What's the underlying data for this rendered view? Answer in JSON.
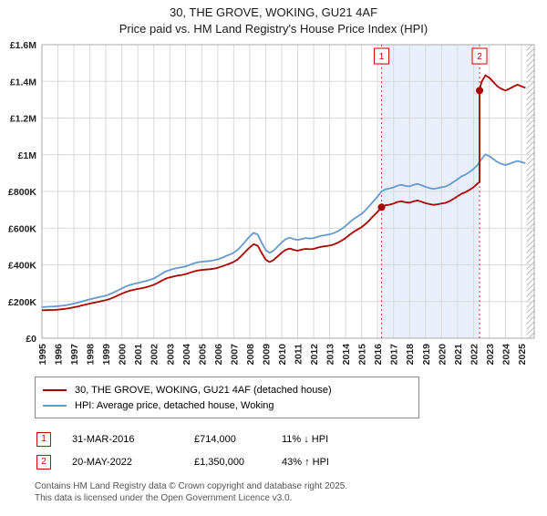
{
  "title": {
    "line1": "30, THE GROVE, WOKING, GU21 4AF",
    "line2": "Price paid vs. HM Land Registry's House Price Index (HPI)"
  },
  "legend": {
    "items": [
      {
        "label": "30, THE GROVE, WOKING, GU21 4AF (detached house)",
        "color": "#aa0000"
      },
      {
        "label": "HPI: Average price, detached house, Woking",
        "color": "#6699cc"
      }
    ]
  },
  "sales": [
    {
      "num": "1",
      "date": "31-MAR-2016",
      "price": "£714,000",
      "hpi": "11% ↓ HPI"
    },
    {
      "num": "2",
      "date": "20-MAY-2022",
      "price": "£1,350,000",
      "hpi": "43% ↑ HPI"
    }
  ],
  "footer": {
    "line1": "Contains HM Land Registry data © Crown copyright and database right 2025.",
    "line2": "This data is licensed under the Open Government Licence v3.0."
  },
  "chart_data": {
    "type": "line",
    "title": "30, THE GROVE, WOKING, GU21 4AF",
    "subtitle": "Price paid vs. HM Land Registry's House Price Index (HPI)",
    "x_range": [
      1995,
      2025.8
    ],
    "y_range": [
      0,
      1600
    ],
    "y_unit": "GBP thousands",
    "y_ticks": [
      {
        "v": 0,
        "label": "£0"
      },
      {
        "v": 200,
        "label": "£200K"
      },
      {
        "v": 400,
        "label": "£400K"
      },
      {
        "v": 600,
        "label": "£600K"
      },
      {
        "v": 800,
        "label": "£800K"
      },
      {
        "v": 1000,
        "label": "£1M"
      },
      {
        "v": 1200,
        "label": "£1.2M"
      },
      {
        "v": 1400,
        "label": "£1.4M"
      },
      {
        "v": 1600,
        "label": "£1.6M"
      }
    ],
    "x_ticks": [
      1995,
      1996,
      1997,
      1998,
      1999,
      2000,
      2001,
      2002,
      2003,
      2004,
      2005,
      2006,
      2007,
      2008,
      2009,
      2010,
      2011,
      2012,
      2013,
      2014,
      2015,
      2016,
      2017,
      2018,
      2019,
      2020,
      2021,
      2022,
      2023,
      2024,
      2025
    ],
    "shade_region": [
      2016.25,
      2022.38
    ],
    "hatch_region": [
      2025.32,
      2025.8
    ],
    "colors": {
      "grid": "#d8d8d8",
      "shade": "#e9effa",
      "hatch": "#bbbbbb",
      "marker_line": "#cc3333",
      "marker_box_border": "#cc0000",
      "plot_border": "#aaaaaa"
    },
    "markers": [
      {
        "n": "1",
        "x": 2016.25,
        "y": 714
      },
      {
        "n": "2",
        "x": 2022.38,
        "y": 1350
      }
    ],
    "series": [
      {
        "name": "30, THE GROVE, WOKING, GU21 4AF (detached house)",
        "data_name": "price-paid-series",
        "color": "#aa0000",
        "x": [
          1995,
          1995.25,
          1995.5,
          1995.75,
          1996,
          1996.25,
          1996.5,
          1996.75,
          1997,
          1997.25,
          1997.5,
          1997.75,
          1998,
          1998.25,
          1998.5,
          1998.75,
          1999,
          1999.25,
          1999.5,
          1999.75,
          2000,
          2000.25,
          2000.5,
          2000.75,
          2001,
          2001.25,
          2001.5,
          2001.75,
          2002,
          2002.25,
          2002.5,
          2002.75,
          2003,
          2003.25,
          2003.5,
          2003.75,
          2004,
          2004.25,
          2004.5,
          2004.75,
          2005,
          2005.25,
          2005.5,
          2005.75,
          2006,
          2006.25,
          2006.5,
          2006.75,
          2007,
          2007.25,
          2007.5,
          2007.75,
          2008,
          2008.25,
          2008.5,
          2008.75,
          2009,
          2009.25,
          2009.5,
          2009.75,
          2010,
          2010.25,
          2010.5,
          2010.75,
          2011,
          2011.25,
          2011.5,
          2011.75,
          2012,
          2012.25,
          2012.5,
          2012.75,
          2013,
          2013.25,
          2013.5,
          2013.75,
          2014,
          2014.25,
          2014.5,
          2014.75,
          2015,
          2015.25,
          2015.5,
          2015.75,
          2016,
          2016.25,
          2016.5,
          2016.75,
          2017,
          2017.25,
          2017.5,
          2017.75,
          2018,
          2018.25,
          2018.5,
          2018.75,
          2019,
          2019.25,
          2019.5,
          2019.75,
          2020,
          2020.25,
          2020.5,
          2020.75,
          2021,
          2021.25,
          2021.5,
          2021.75,
          2022,
          2022.25,
          2022.38,
          2022.38,
          2022.5,
          2022.75,
          2023,
          2023.25,
          2023.5,
          2023.75,
          2024,
          2024.25,
          2024.5,
          2024.75,
          2025,
          2025.25
        ],
        "y": [
          152,
          153,
          154,
          154,
          156,
          158,
          161,
          164,
          169,
          173,
          179,
          184,
          189,
          194,
          198,
          203,
          207,
          214,
          223,
          233,
          243,
          252,
          259,
          264,
          269,
          273,
          278,
          284,
          291,
          302,
          314,
          325,
          332,
          337,
          342,
          345,
          350,
          357,
          364,
          369,
          372,
          374,
          376,
          379,
          384,
          391,
          399,
          407,
          416,
          430,
          451,
          473,
          495,
          513,
          504,
          464,
          428,
          415,
          427,
          446,
          466,
          482,
          489,
          482,
          477,
          483,
          487,
          485,
          487,
          494,
          499,
          502,
          505,
          511,
          520,
          532,
          546,
          564,
          580,
          593,
          605,
          623,
          644,
          668,
          689,
          714,
          725,
          728,
          734,
          743,
          746,
          741,
          739,
          746,
          751,
          744,
          736,
          731,
          727,
          730,
          734,
          738,
          747,
          760,
          773,
          787,
          796,
          809,
          823,
          843,
          850,
          1350,
          1396,
          1433,
          1419,
          1396,
          1373,
          1359,
          1350,
          1360,
          1372,
          1382,
          1373,
          1365
        ]
      },
      {
        "name": "HPI: Average price, detached house, Woking",
        "data_name": "hpi-series",
        "color": "#6699cc",
        "x": [
          1995,
          1995.25,
          1995.5,
          1995.75,
          1996,
          1996.25,
          1996.5,
          1996.75,
          1997,
          1997.25,
          1997.5,
          1997.75,
          1998,
          1998.25,
          1998.5,
          1998.75,
          1999,
          1999.25,
          1999.5,
          1999.75,
          2000,
          2000.25,
          2000.5,
          2000.75,
          2001,
          2001.25,
          2001.5,
          2001.75,
          2002,
          2002.25,
          2002.5,
          2002.75,
          2003,
          2003.25,
          2003.5,
          2003.75,
          2004,
          2004.25,
          2004.5,
          2004.75,
          2005,
          2005.25,
          2005.5,
          2005.75,
          2006,
          2006.25,
          2006.5,
          2006.75,
          2007,
          2007.25,
          2007.5,
          2007.75,
          2008,
          2008.25,
          2008.5,
          2008.75,
          2009,
          2009.25,
          2009.5,
          2009.75,
          2010,
          2010.25,
          2010.5,
          2010.75,
          2011,
          2011.25,
          2011.5,
          2011.75,
          2012,
          2012.25,
          2012.5,
          2012.75,
          2013,
          2013.25,
          2013.5,
          2013.75,
          2014,
          2014.25,
          2014.5,
          2014.75,
          2015,
          2015.25,
          2015.5,
          2015.75,
          2016,
          2016.25,
          2016.5,
          2016.75,
          2017,
          2017.25,
          2017.5,
          2017.75,
          2018,
          2018.25,
          2018.5,
          2018.75,
          2019,
          2019.25,
          2019.5,
          2019.75,
          2020,
          2020.25,
          2020.5,
          2020.75,
          2021,
          2021.25,
          2021.5,
          2021.75,
          2022,
          2022.25,
          2022.5,
          2022.75,
          2023,
          2023.25,
          2023.5,
          2023.75,
          2024,
          2024.25,
          2024.5,
          2024.75,
          2025,
          2025.25
        ],
        "y": [
          170,
          171,
          172,
          173,
          175,
          177,
          180,
          184,
          189,
          194,
          200,
          206,
          212,
          217,
          222,
          227,
          232,
          240,
          250,
          261,
          272,
          282,
          290,
          296,
          301,
          306,
          312,
          318,
          326,
          338,
          352,
          364,
          372,
          378,
          383,
          387,
          392,
          400,
          408,
          414,
          417,
          419,
          421,
          425,
          430,
          438,
          447,
          456,
          466,
          482,
          505,
          530,
          555,
          575,
          565,
          520,
          480,
          465,
          478,
          500,
          522,
          540,
          548,
          540,
          535,
          541,
          546,
          543,
          546,
          553,
          559,
          563,
          566,
          573,
          583,
          596,
          612,
          632,
          650,
          664,
          678,
          698,
          722,
          748,
          772,
          800,
          812,
          816,
          822,
          832,
          836,
          830,
          828,
          836,
          841,
          834,
          825,
          819,
          814,
          818,
          823,
          827,
          837,
          852,
          866,
          882,
          892,
          906,
          922,
          944,
          976,
          1002,
          992,
          976,
          960,
          950,
          944,
          951,
          959,
          966,
          960,
          954
        ]
      }
    ]
  }
}
